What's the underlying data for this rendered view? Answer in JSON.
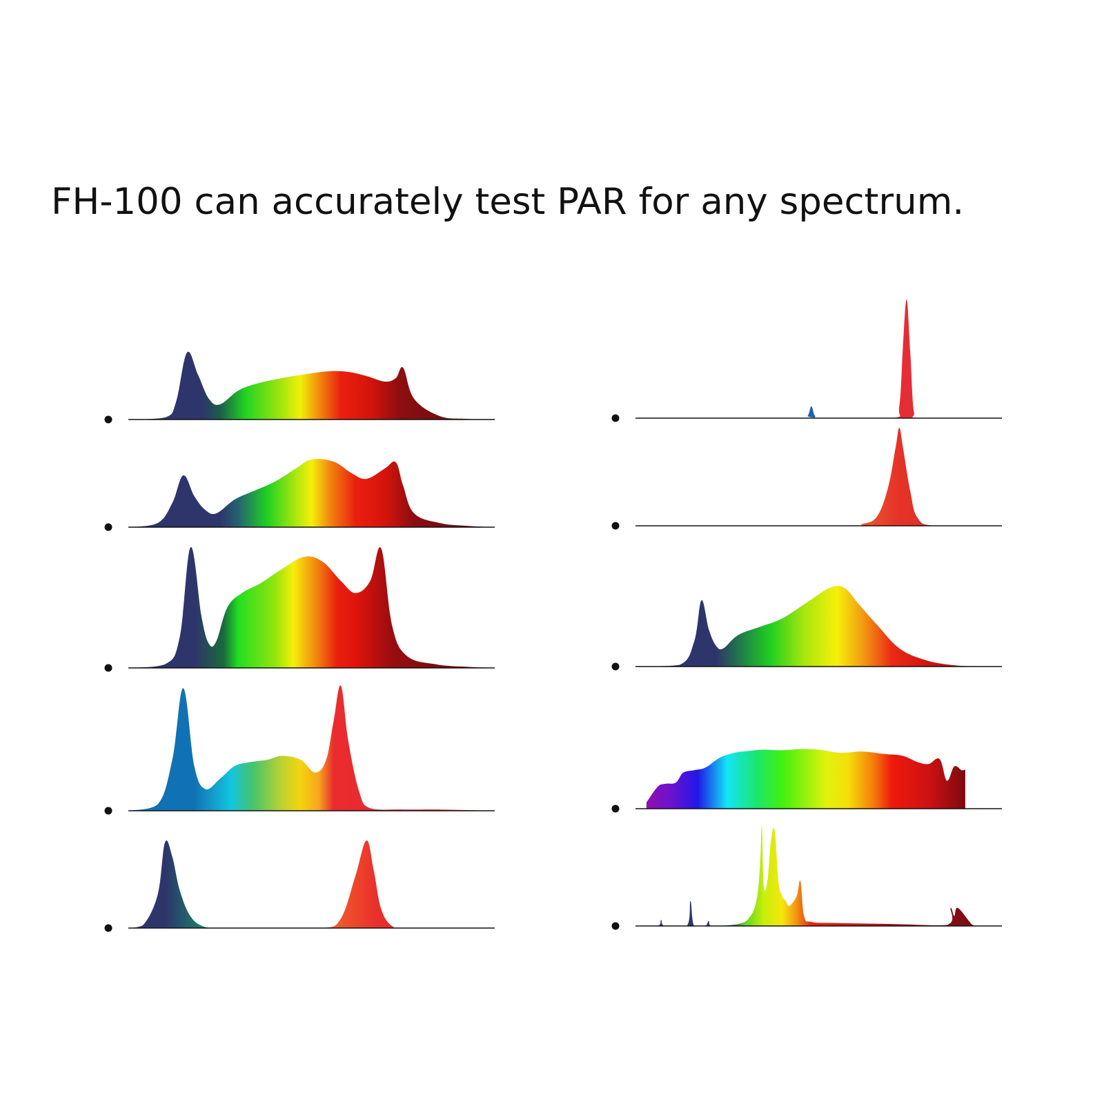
{
  "headline": "FH-100 can accurately test PAR for any spectrum.",
  "colors": {
    "text": "#111111",
    "baseline": "#111111",
    "bullet": "#111111"
  },
  "chart_data": {
    "type": "area",
    "x_unit": "wavelength (relative)",
    "columns": 2,
    "spectra": [
      {
        "column": 0,
        "row": 0,
        "x": [
          0.0,
          0.1,
          0.13,
          0.16,
          0.19,
          0.22,
          0.25,
          0.3,
          0.35,
          0.4,
          0.45,
          0.5,
          0.55,
          0.6,
          0.65,
          0.7,
          0.73,
          0.75,
          0.78,
          0.85,
          0.92,
          1.0
        ],
        "y": [
          0.0,
          0.03,
          0.25,
          0.97,
          0.65,
          0.3,
          0.22,
          0.42,
          0.52,
          0.58,
          0.63,
          0.67,
          0.7,
          0.69,
          0.63,
          0.55,
          0.6,
          0.75,
          0.3,
          0.05,
          0.01,
          0.0
        ],
        "gradient": [
          [
            0.0,
            "#2d356b"
          ],
          [
            0.2,
            "#2d356b"
          ],
          [
            0.25,
            "#1d5c4c"
          ],
          [
            0.32,
            "#21d321"
          ],
          [
            0.42,
            "#a8e60c"
          ],
          [
            0.47,
            "#f3ef0a"
          ],
          [
            0.52,
            "#f28b0e"
          ],
          [
            0.58,
            "#ea1f0f"
          ],
          [
            0.66,
            "#d5140c"
          ],
          [
            0.74,
            "#8d0e10"
          ],
          [
            1.0,
            "#5c0b0f"
          ]
        ]
      },
      {
        "column": 0,
        "row": 1,
        "x": [
          0.0,
          0.08,
          0.12,
          0.15,
          0.18,
          0.21,
          0.24,
          0.29,
          0.34,
          0.4,
          0.46,
          0.5,
          0.56,
          0.61,
          0.65,
          0.7,
          0.73,
          0.75,
          0.78,
          0.85,
          0.92,
          1.0
        ],
        "y": [
          0.0,
          0.06,
          0.35,
          0.75,
          0.45,
          0.25,
          0.2,
          0.4,
          0.52,
          0.66,
          0.86,
          0.98,
          0.95,
          0.78,
          0.7,
          0.85,
          0.94,
          0.6,
          0.2,
          0.06,
          0.02,
          0.0
        ],
        "gradient": [
          [
            0.0,
            "#2d356b"
          ],
          [
            0.25,
            "#2d356b"
          ],
          [
            0.3,
            "#24636f"
          ],
          [
            0.38,
            "#20d221"
          ],
          [
            0.46,
            "#b2e70c"
          ],
          [
            0.5,
            "#f5ef0a"
          ],
          [
            0.55,
            "#f2850f"
          ],
          [
            0.62,
            "#ea1f0f"
          ],
          [
            0.7,
            "#d5140c"
          ],
          [
            0.78,
            "#8b0d10"
          ],
          [
            1.0,
            "#5d0b0f"
          ]
        ]
      },
      {
        "column": 0,
        "row": 2,
        "x": [
          0.0,
          0.1,
          0.14,
          0.17,
          0.2,
          0.22,
          0.24,
          0.27,
          0.31,
          0.36,
          0.42,
          0.48,
          0.53,
          0.58,
          0.62,
          0.66,
          0.69,
          0.72,
          0.76,
          0.84,
          0.92,
          1.0
        ],
        "y": [
          0.0,
          0.03,
          0.25,
          1.0,
          0.42,
          0.2,
          0.22,
          0.5,
          0.62,
          0.7,
          0.82,
          0.92,
          0.88,
          0.72,
          0.62,
          0.72,
          0.99,
          0.35,
          0.1,
          0.03,
          0.01,
          0.0
        ],
        "gradient": [
          [
            0.0,
            "#2d356b"
          ],
          [
            0.18,
            "#2d356b"
          ],
          [
            0.26,
            "#1a6a3b"
          ],
          [
            0.3,
            "#22de22"
          ],
          [
            0.4,
            "#92e40d"
          ],
          [
            0.45,
            "#f6ef0a"
          ],
          [
            0.51,
            "#f28b0e"
          ],
          [
            0.57,
            "#ea1f0f"
          ],
          [
            0.62,
            "#e0140c"
          ],
          [
            0.72,
            "#990d10"
          ],
          [
            1.0,
            "#5c0b0f"
          ]
        ]
      },
      {
        "column": 0,
        "row": 3,
        "x": [
          0.0,
          0.08,
          0.12,
          0.15,
          0.18,
          0.21,
          0.25,
          0.29,
          0.33,
          0.38,
          0.42,
          0.47,
          0.51,
          0.54,
          0.56,
          0.58,
          0.6,
          0.63,
          0.66,
          0.75,
          0.85,
          1.0
        ],
        "y": [
          0.0,
          0.05,
          0.4,
          0.96,
          0.35,
          0.17,
          0.25,
          0.35,
          0.38,
          0.4,
          0.43,
          0.4,
          0.3,
          0.4,
          0.7,
          0.98,
          0.55,
          0.15,
          0.02,
          0.01,
          0.01,
          0.0
        ],
        "gradient": [
          [
            0.0,
            "#1070b5"
          ],
          [
            0.18,
            "#1072b4"
          ],
          [
            0.28,
            "#13c5e0"
          ],
          [
            0.34,
            "#45c46c"
          ],
          [
            0.42,
            "#bed22f"
          ],
          [
            0.47,
            "#f5d40d"
          ],
          [
            0.52,
            "#f6a61e"
          ],
          [
            0.56,
            "#ea2c2e"
          ],
          [
            1.0,
            "#e2242a"
          ]
        ]
      },
      {
        "column": 0,
        "row": 4,
        "x": [
          0.0,
          0.04,
          0.08,
          0.1,
          0.12,
          0.14,
          0.17,
          0.21,
          0.26,
          0.4,
          0.53,
          0.58,
          0.62,
          0.65,
          0.67,
          0.69,
          0.72,
          0.76,
          1.0
        ],
        "y": [
          0.0,
          0.03,
          0.35,
          0.9,
          0.75,
          0.4,
          0.12,
          0.01,
          0.0,
          0.0,
          0.0,
          0.1,
          0.55,
          0.92,
          0.6,
          0.2,
          0.02,
          0.0,
          0.0
        ],
        "gradient": [
          [
            0.0,
            "#2d356b"
          ],
          [
            0.1,
            "#2d356b"
          ],
          [
            0.2,
            "#1d7c6c"
          ],
          [
            0.4,
            "#ffffff"
          ],
          [
            0.55,
            "#f0612e"
          ],
          [
            0.68,
            "#e92f2b"
          ],
          [
            1.0,
            "#e2242a"
          ]
        ]
      },
      {
        "column": 1,
        "row": 0,
        "x": [
          0.0,
          0.45,
          0.47,
          0.48,
          0.49,
          0.51,
          0.7,
          0.72,
          0.73,
          0.74,
          0.75,
          0.76,
          0.78,
          1.0
        ],
        "y": [
          0.0,
          0.0,
          0.02,
          0.1,
          0.02,
          0.0,
          0.0,
          0.1,
          0.6,
          1.0,
          0.55,
          0.05,
          0.0,
          0.0
        ],
        "gradient": [
          [
            0.0,
            "#1f64a8"
          ],
          [
            0.55,
            "#1f64a8"
          ],
          [
            0.6,
            "#e52d35"
          ],
          [
            1.0,
            "#e52d35"
          ]
        ]
      },
      {
        "column": 1,
        "row": 1,
        "x": [
          0.0,
          0.55,
          0.62,
          0.66,
          0.69,
          0.71,
          0.72,
          0.73,
          0.75,
          0.77,
          0.82,
          1.0
        ],
        "y": [
          0.0,
          0.0,
          0.02,
          0.1,
          0.4,
          0.8,
          1.0,
          0.8,
          0.35,
          0.08,
          0.0,
          0.0
        ],
        "gradient": [
          [
            0.0,
            "#f15e33"
          ],
          [
            0.6,
            "#f15e33"
          ],
          [
            0.72,
            "#e43228"
          ],
          [
            1.0,
            "#dc2b25"
          ]
        ]
      },
      {
        "column": 1,
        "row": 2,
        "x": [
          0.0,
          0.12,
          0.16,
          0.18,
          0.2,
          0.22,
          0.24,
          0.28,
          0.34,
          0.4,
          0.47,
          0.53,
          0.57,
          0.61,
          0.66,
          0.72,
          0.79,
          0.86,
          0.94,
          1.0
        ],
        "y": [
          0.0,
          0.02,
          0.3,
          0.8,
          0.45,
          0.25,
          0.22,
          0.38,
          0.48,
          0.58,
          0.78,
          0.95,
          0.95,
          0.75,
          0.5,
          0.22,
          0.08,
          0.02,
          0.0,
          0.0
        ],
        "gradient": [
          [
            0.0,
            "#2d356b"
          ],
          [
            0.22,
            "#2d356b"
          ],
          [
            0.3,
            "#1f8a44"
          ],
          [
            0.37,
            "#21d021"
          ],
          [
            0.46,
            "#a8e60c"
          ],
          [
            0.55,
            "#f6ef0a"
          ],
          [
            0.62,
            "#f39b12"
          ],
          [
            0.7,
            "#ea2a14"
          ],
          [
            0.8,
            "#cf1410"
          ],
          [
            1.0,
            "#8e0c10"
          ]
        ]
      },
      {
        "column": 1,
        "row": 3,
        "x": [
          0.03,
          0.06,
          0.08,
          0.11,
          0.13,
          0.16,
          0.19,
          0.23,
          0.27,
          0.31,
          0.35,
          0.4,
          0.45,
          0.5,
          0.56,
          0.62,
          0.68,
          0.73,
          0.77,
          0.8,
          0.83,
          0.85,
          0.87,
          0.89,
          0.9
        ],
        "y": [
          0.1,
          0.35,
          0.4,
          0.42,
          0.58,
          0.62,
          0.66,
          0.82,
          0.9,
          0.93,
          0.95,
          0.94,
          0.96,
          0.95,
          0.9,
          0.92,
          0.88,
          0.85,
          0.75,
          0.72,
          0.8,
          0.45,
          0.68,
          0.62,
          0.63
        ],
        "gradient": [
          [
            0.03,
            "#9010b0"
          ],
          [
            0.1,
            "#6a12cf"
          ],
          [
            0.17,
            "#2018e8"
          ],
          [
            0.25,
            "#12e5f6"
          ],
          [
            0.33,
            "#1ae66e"
          ],
          [
            0.4,
            "#40f00f"
          ],
          [
            0.52,
            "#dff20c"
          ],
          [
            0.58,
            "#f5df0a"
          ],
          [
            0.65,
            "#f47b0b"
          ],
          [
            0.7,
            "#ee1a0c"
          ],
          [
            0.8,
            "#ce1112"
          ],
          [
            0.9,
            "#7c0a10"
          ]
        ]
      },
      {
        "column": 1,
        "row": 4,
        "x": [
          0.0,
          0.06,
          0.07,
          0.08,
          0.14,
          0.15,
          0.16,
          0.19,
          0.2,
          0.21,
          0.28,
          0.31,
          0.33,
          0.34,
          0.345,
          0.35,
          0.36,
          0.37,
          0.38,
          0.39,
          0.4,
          0.41,
          0.42,
          0.44,
          0.45,
          0.46,
          0.48,
          0.55,
          0.7,
          0.85,
          0.86,
          0.87,
          0.88,
          0.92,
          0.94,
          1.0
        ],
        "y": [
          0.0,
          0.0,
          0.06,
          0.0,
          0.0,
          0.25,
          0.0,
          0.0,
          0.05,
          0.0,
          0.02,
          0.08,
          0.25,
          0.6,
          1.0,
          0.4,
          0.45,
          0.86,
          0.95,
          0.45,
          0.3,
          0.25,
          0.2,
          0.3,
          0.45,
          0.1,
          0.04,
          0.03,
          0.02,
          0.01,
          0.18,
          0.1,
          0.18,
          0.01,
          0.0,
          0.0
        ],
        "gradient": [
          [
            0.0,
            "#2d356b"
          ],
          [
            0.25,
            "#2d356b"
          ],
          [
            0.3,
            "#5fd81c"
          ],
          [
            0.35,
            "#c8ee0c"
          ],
          [
            0.4,
            "#f5e70b"
          ],
          [
            0.44,
            "#f39212"
          ],
          [
            0.48,
            "#e82513"
          ],
          [
            0.65,
            "#b8141a"
          ],
          [
            0.8,
            "#8c1016"
          ],
          [
            1.0,
            "#6e0c10"
          ]
        ]
      }
    ]
  }
}
